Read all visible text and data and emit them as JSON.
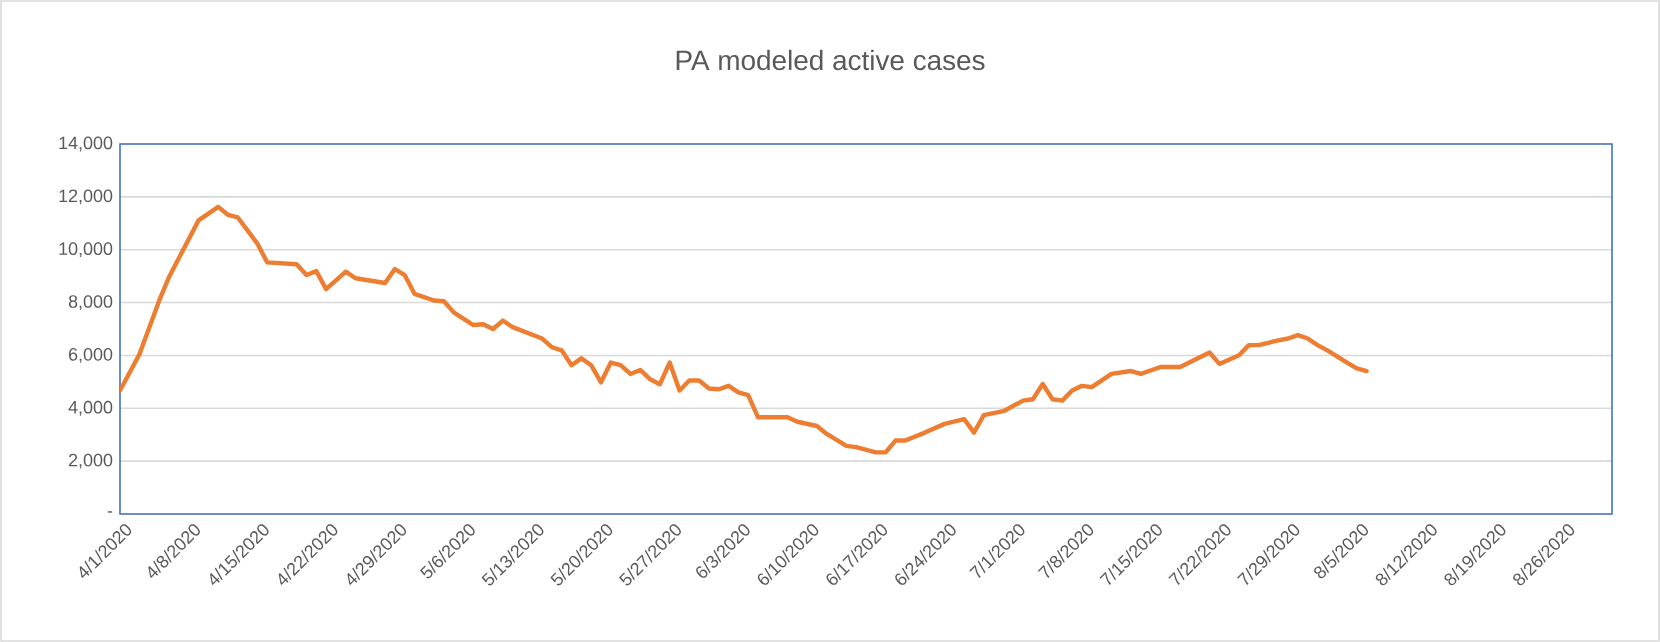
{
  "chart_data": {
    "type": "line",
    "title": "PA modeled active cases",
    "x": [
      "2020-04-01",
      "2020-04-03",
      "2020-04-05",
      "2020-04-06",
      "2020-04-09",
      "2020-04-11",
      "2020-04-12",
      "2020-04-13",
      "2020-04-15",
      "2020-04-16",
      "2020-04-19",
      "2020-04-20",
      "2020-04-21",
      "2020-04-22",
      "2020-04-24",
      "2020-04-25",
      "2020-04-28",
      "2020-04-29",
      "2020-04-30",
      "2020-05-01",
      "2020-05-03",
      "2020-05-04",
      "2020-05-05",
      "2020-05-07",
      "2020-05-08",
      "2020-05-09",
      "2020-05-10",
      "2020-05-11",
      "2020-05-14",
      "2020-05-15",
      "2020-05-16",
      "2020-05-17",
      "2020-05-18",
      "2020-05-19",
      "2020-05-20",
      "2020-05-21",
      "2020-05-22",
      "2020-05-23",
      "2020-05-24",
      "2020-05-25",
      "2020-05-26",
      "2020-05-27",
      "2020-05-28",
      "2020-05-29",
      "2020-05-30",
      "2020-05-31",
      "2020-06-01",
      "2020-06-02",
      "2020-06-03",
      "2020-06-04",
      "2020-06-05",
      "2020-06-08",
      "2020-06-09",
      "2020-06-11",
      "2020-06-12",
      "2020-06-14",
      "2020-06-15",
      "2020-06-17",
      "2020-06-18",
      "2020-06-19",
      "2020-06-20",
      "2020-06-22",
      "2020-06-24",
      "2020-06-26",
      "2020-06-27",
      "2020-06-28",
      "2020-06-30",
      "2020-07-02",
      "2020-07-03",
      "2020-07-04",
      "2020-07-05",
      "2020-07-06",
      "2020-07-07",
      "2020-07-08",
      "2020-07-09",
      "2020-07-11",
      "2020-07-13",
      "2020-07-14",
      "2020-07-16",
      "2020-07-18",
      "2020-07-21",
      "2020-07-22",
      "2020-07-24",
      "2020-07-25",
      "2020-07-26",
      "2020-07-28",
      "2020-07-29",
      "2020-07-30",
      "2020-07-31",
      "2020-08-01",
      "2020-08-02",
      "2020-08-04",
      "2020-08-05",
      "2020-08-06"
    ],
    "series": [
      {
        "color": "#ed7d31",
        "values": [
          4670,
          6060,
          8080,
          8970,
          11110,
          11620,
          11320,
          11220,
          10230,
          9520,
          9450,
          9040,
          9190,
          8510,
          9170,
          8920,
          8740,
          9270,
          9040,
          8330,
          8080,
          8050,
          7630,
          7150,
          7180,
          7000,
          7320,
          7070,
          6640,
          6310,
          6190,
          5630,
          5890,
          5630,
          4980,
          5730,
          5630,
          5300,
          5450,
          5100,
          4910,
          5730,
          4670,
          5050,
          5050,
          4750,
          4720,
          4850,
          4600,
          4500,
          3660,
          3660,
          3490,
          3330,
          3030,
          2580,
          2530,
          2330,
          2330,
          2780,
          2780,
          3080,
          3410,
          3590,
          3080,
          3740,
          3890,
          4290,
          4340,
          4920,
          4340,
          4290,
          4670,
          4850,
          4800,
          5300,
          5410,
          5300,
          5560,
          5560,
          6110,
          5680,
          6010,
          6390,
          6390,
          6570,
          6640,
          6770,
          6640,
          6390,
          6190,
          5730,
          5510,
          5410
        ]
      }
    ],
    "xlim": [
      "2020-04-01",
      "2020-08-31"
    ],
    "xticks": [
      {
        "value": "2020-04-01",
        "label": "4/1/2020"
      },
      {
        "value": "2020-04-08",
        "label": "4/8/2020"
      },
      {
        "value": "2020-04-15",
        "label": "4/15/2020"
      },
      {
        "value": "2020-04-22",
        "label": "4/22/2020"
      },
      {
        "value": "2020-04-29",
        "label": "4/29/2020"
      },
      {
        "value": "2020-05-06",
        "label": "5/6/2020"
      },
      {
        "value": "2020-05-13",
        "label": "5/13/2020"
      },
      {
        "value": "2020-05-20",
        "label": "5/20/2020"
      },
      {
        "value": "2020-05-27",
        "label": "5/27/2020"
      },
      {
        "value": "2020-06-03",
        "label": "6/3/2020"
      },
      {
        "value": "2020-06-10",
        "label": "6/10/2020"
      },
      {
        "value": "2020-06-17",
        "label": "6/17/2020"
      },
      {
        "value": "2020-06-24",
        "label": "6/24/2020"
      },
      {
        "value": "2020-07-01",
        "label": "7/1/2020"
      },
      {
        "value": "2020-07-08",
        "label": "7/8/2020"
      },
      {
        "value": "2020-07-15",
        "label": "7/15/2020"
      },
      {
        "value": "2020-07-22",
        "label": "7/22/2020"
      },
      {
        "value": "2020-07-29",
        "label": "7/29/2020"
      },
      {
        "value": "2020-08-05",
        "label": "8/5/2020"
      },
      {
        "value": "2020-08-12",
        "label": "8/12/2020"
      },
      {
        "value": "2020-08-19",
        "label": "8/19/2020"
      },
      {
        "value": "2020-08-26",
        "label": "8/26/2020"
      }
    ],
    "ylim": [
      0,
      14000
    ],
    "yticks": [
      {
        "value": 0,
        "label": "-"
      },
      {
        "value": 2000,
        "label": "2,000"
      },
      {
        "value": 4000,
        "label": "4,000"
      },
      {
        "value": 6000,
        "label": "6,000"
      },
      {
        "value": 8000,
        "label": "8,000"
      },
      {
        "value": 10000,
        "label": "10,000"
      },
      {
        "value": 12000,
        "label": "12,000"
      },
      {
        "value": 14000,
        "label": "14,000"
      }
    ],
    "grid": "y"
  }
}
